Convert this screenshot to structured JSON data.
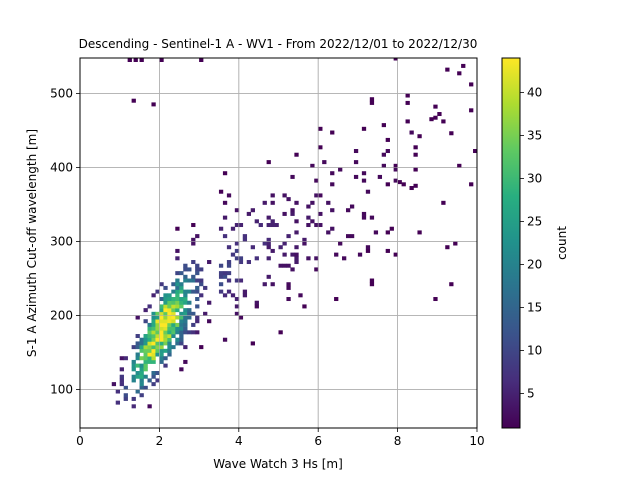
{
  "chart_data": {
    "type": "heatmap",
    "title": "Descending - Sentinel-1 A - WV1 - From 2022/12/01 to 2022/12/30",
    "xlabel": "Wave Watch 3 Hs [m]",
    "ylabel": "S-1 A Azimuth Cut-off wavelength [m]",
    "xlim": [
      0,
      10
    ],
    "ylim": [
      48,
      548
    ],
    "x_ticks": [
      0,
      2,
      4,
      6,
      8,
      10
    ],
    "y_ticks": [
      100,
      200,
      300,
      400,
      500
    ],
    "grid": true,
    "colorbar": {
      "label": "count",
      "min": 1,
      "max": 44,
      "ticks": [
        5,
        10,
        15,
        20,
        25,
        30,
        35,
        40
      ],
      "colormap": "viridis"
    },
    "density_ridge": [
      {
        "hs": 1.0,
        "cutoff": 100
      },
      {
        "hs": 1.5,
        "cutoff": 135
      },
      {
        "hs": 2.0,
        "cutoff": 180
      },
      {
        "hs": 2.5,
        "cutoff": 210
      },
      {
        "hs": 3.0,
        "cutoff": 238
      },
      {
        "hs": 4.0,
        "cutoff": 275
      },
      {
        "hs": 5.0,
        "cutoff": 300
      },
      {
        "hs": 6.0,
        "cutoff": 320
      },
      {
        "hs": 7.0,
        "cutoff": 350
      },
      {
        "hs": 8.0,
        "cutoff": 400
      }
    ],
    "peak": {
      "hs": 2.0,
      "cutoff": 185,
      "count": 44
    }
  }
}
